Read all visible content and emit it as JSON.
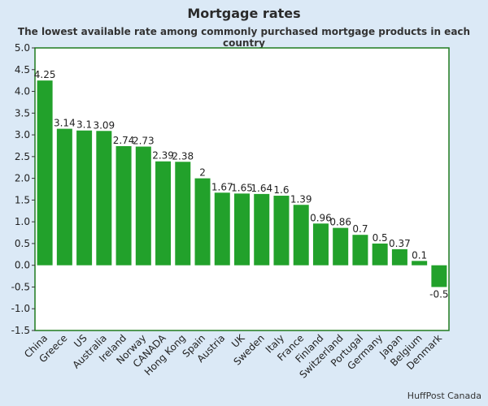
{
  "title": "Mortgage rates",
  "subtitle": "The lowest available rate among commonly purchased mortgage products in each country",
  "source": "HuffPost Canada",
  "colors": {
    "background": "#dbe9f6",
    "plot_area": "#ffffff",
    "bar": "#22a12b",
    "plot_border": "#1f7a1f"
  },
  "chart_data": {
    "type": "bar",
    "categories": [
      "China",
      "Greece",
      "US",
      "Australia",
      "Ireland",
      "Norway",
      "CANADA",
      "Hong Kong",
      "Spain",
      "Austria",
      "UK",
      "Sweden",
      "Italy",
      "France",
      "Finland",
      "Switzerland",
      "Portugal",
      "Germany",
      "Japan",
      "Belgium",
      "Denmark"
    ],
    "values": [
      4.25,
      3.14,
      3.1,
      3.09,
      2.74,
      2.73,
      2.39,
      2.38,
      2,
      1.67,
      1.65,
      1.64,
      1.6,
      1.39,
      0.96,
      0.86,
      0.7,
      0.5,
      0.37,
      0.1,
      -0.5
    ],
    "value_labels": [
      "4.25",
      "3.14",
      "3.1",
      "3.09",
      "2.74",
      "2.73",
      "2.39",
      "2.38",
      "2",
      "1.67",
      "1.65",
      "1.64",
      "1.6",
      "1.39",
      "0.96",
      "0.86",
      "0.7",
      "0.5",
      "0.37",
      "0.1",
      "-0.5"
    ],
    "ylim": [
      -1.5,
      5.0
    ],
    "yticks": [
      "-1.5",
      "-1.0",
      "-0.5",
      "0.0",
      "0.5",
      "1.0",
      "1.5",
      "2.0",
      "2.5",
      "3.0",
      "3.5",
      "4.0",
      "4.5",
      "5.0"
    ],
    "ytick_values": [
      -1.5,
      -1.0,
      -0.5,
      0.0,
      0.5,
      1.0,
      1.5,
      2.0,
      2.5,
      3.0,
      3.5,
      4.0,
      4.5,
      5.0
    ],
    "grid": false,
    "legend": "none",
    "xlabel": "",
    "ylabel": ""
  }
}
